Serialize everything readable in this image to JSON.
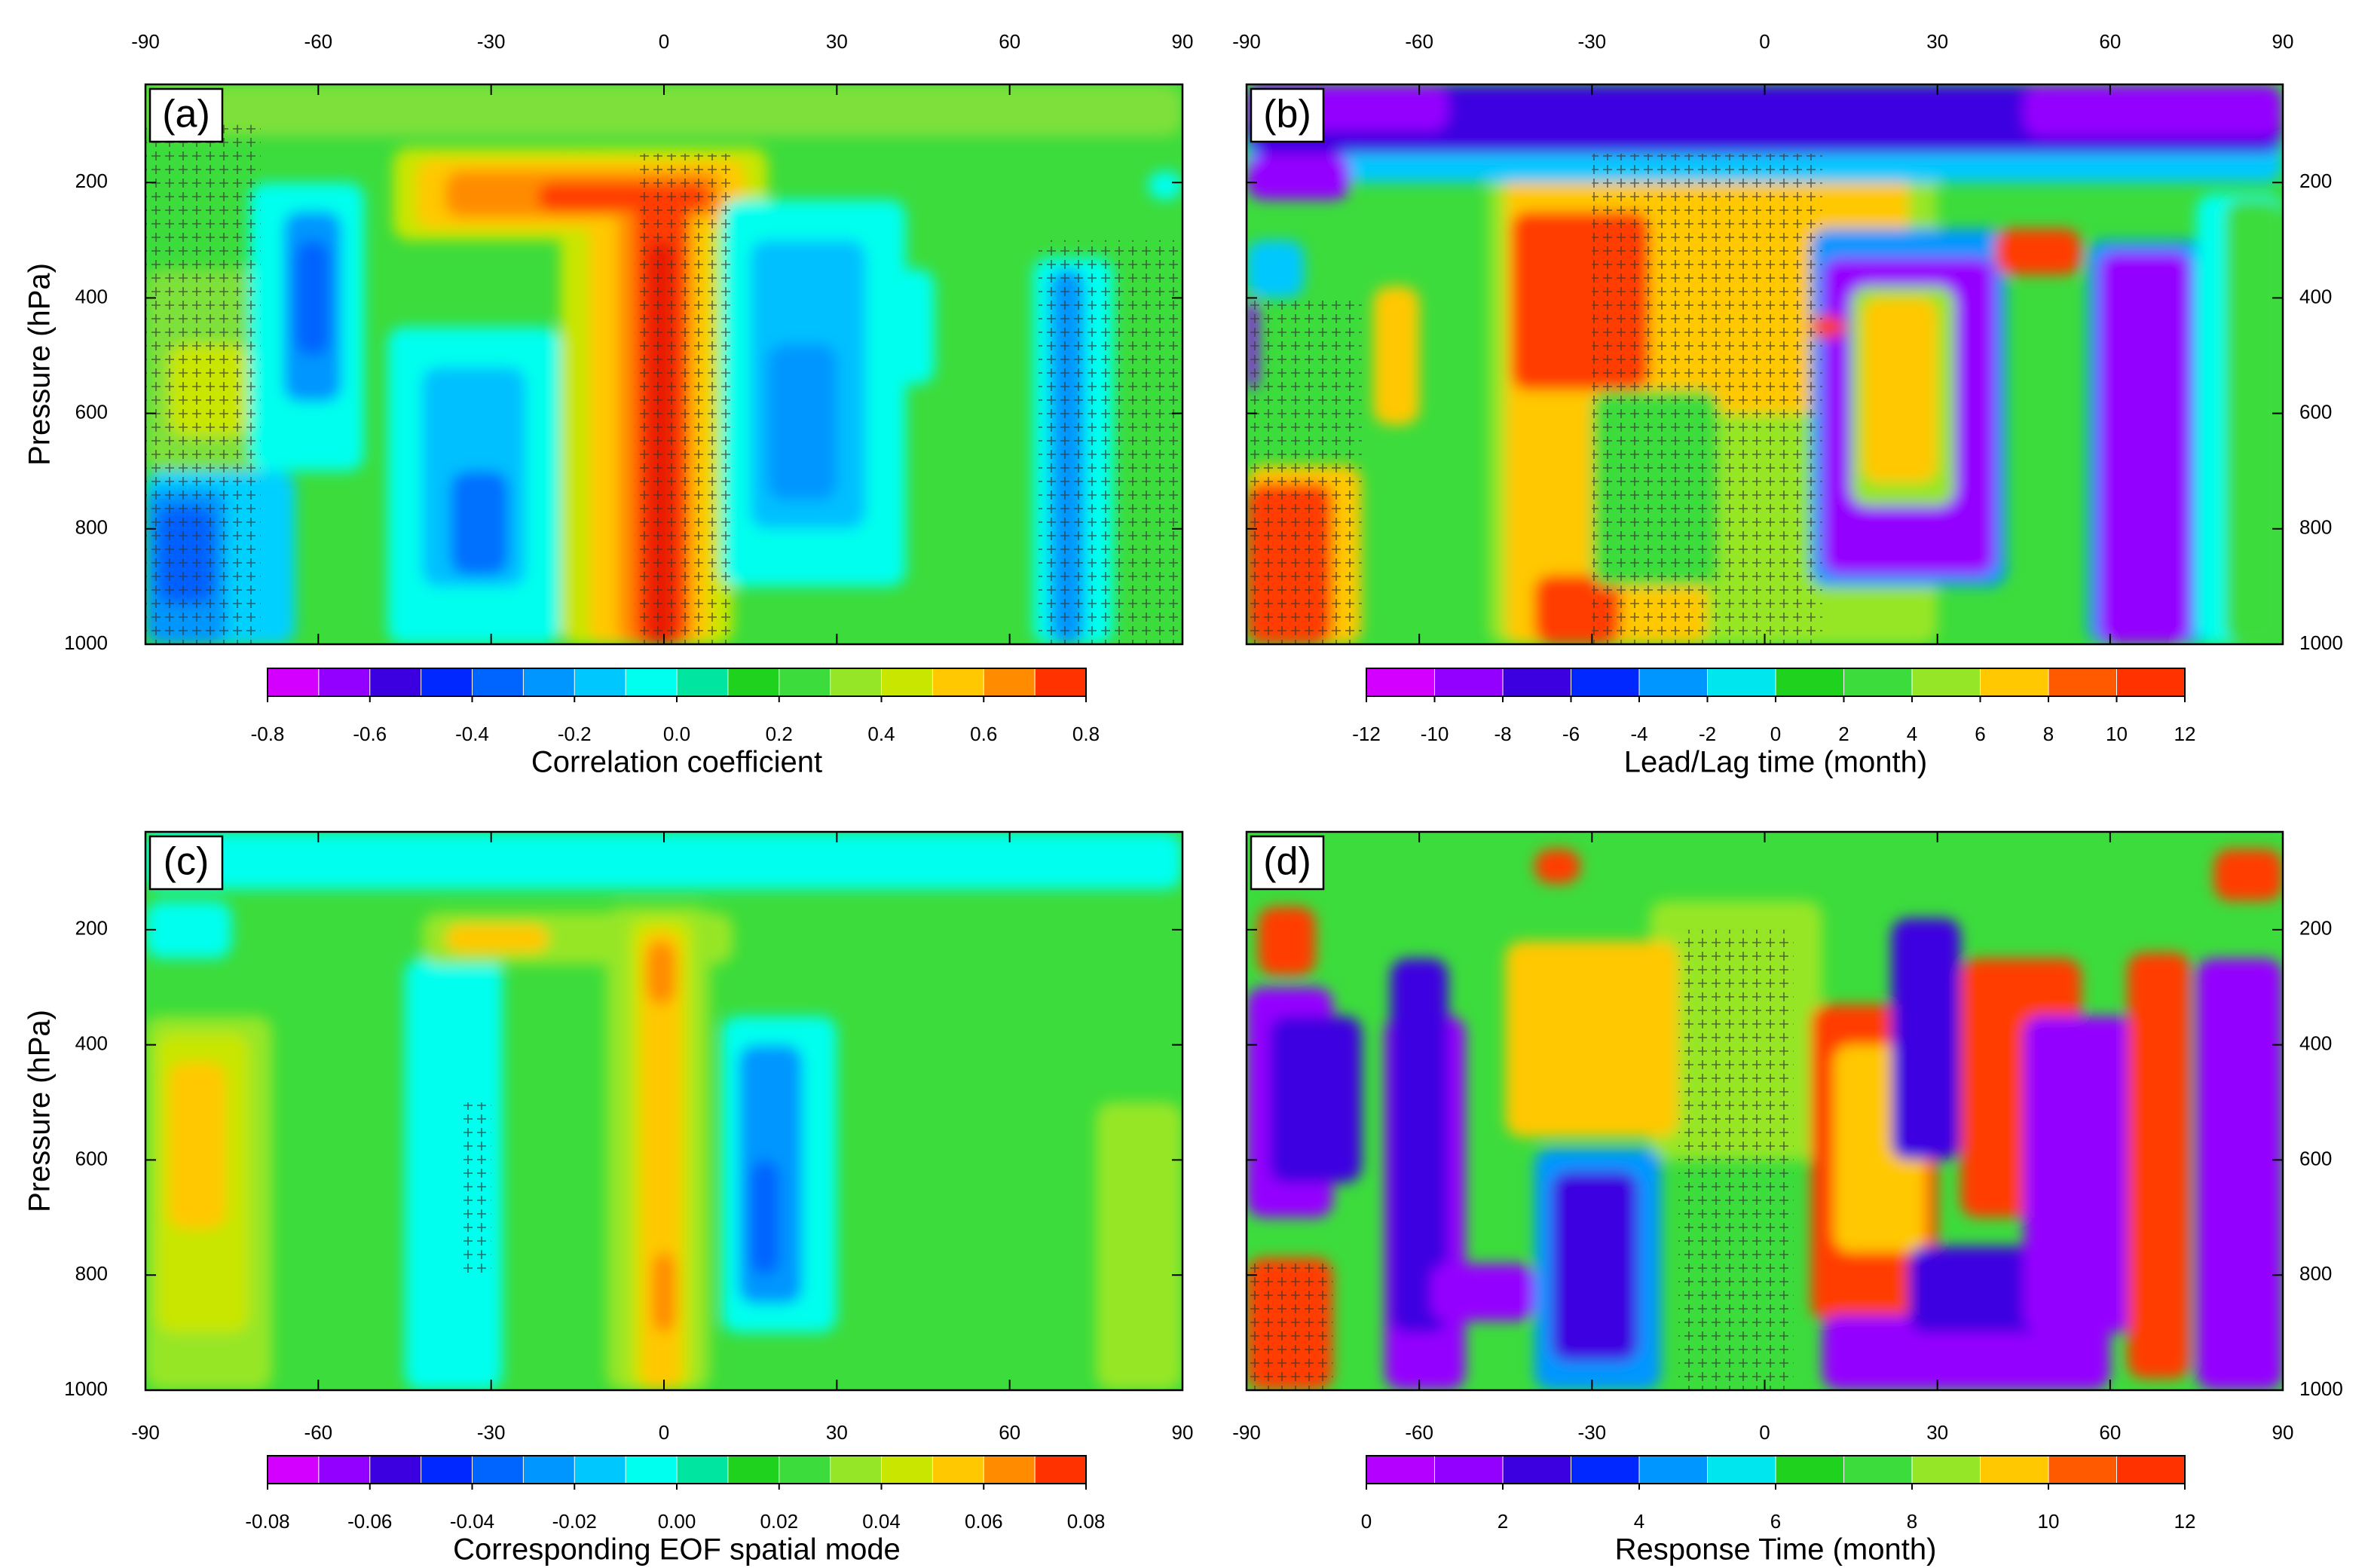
{
  "chart_data": [
    {
      "type": "contour",
      "panel_label": "(a)",
      "xlim": [
        -90,
        90
      ],
      "xticks": [
        -90,
        -60,
        -30,
        0,
        30,
        60,
        90
      ],
      "xtick_side": "top",
      "ylim": [
        1000,
        30
      ],
      "yticks": [
        200,
        400,
        600,
        800,
        1000
      ],
      "ytick_side": "left",
      "ylabel": "Pressure (hPa)",
      "colorbar": {
        "label": "Correlation coefficient",
        "clim": [
          -0.8,
          0.8
        ],
        "ticks": [
          -0.8,
          -0.6,
          -0.4,
          -0.2,
          {
            "value": 0,
            "label": "0.0"
          },
          0.2,
          0.4,
          0.6,
          0.8
        ],
        "colors": [
          "#d300ff",
          "#9400ff",
          "#3c00e0",
          "#0028ff",
          "#0064ff",
          "#0096ff",
          "#00c8ff",
          "#00ffee",
          "#00e6a0",
          "#1ed21e",
          "#3cdc3c",
          "#96e628",
          "#c8e600",
          "#ffc800",
          "#ff8c00",
          "#ff3200"
        ]
      }
    },
    {
      "type": "contour",
      "panel_label": "(b)",
      "xlim": [
        -90,
        90
      ],
      "xticks": [
        -90,
        -60,
        -30,
        0,
        30,
        60,
        90
      ],
      "xtick_side": "top",
      "ylim": [
        1000,
        30
      ],
      "yticks": [
        200,
        400,
        600,
        800,
        1000
      ],
      "ytick_side": "right",
      "colorbar": {
        "label": "Lead/Lag time (month)",
        "clim": [
          -12,
          12
        ],
        "ticks": [
          -12,
          -10,
          -8,
          -6,
          -4,
          -2,
          0,
          2,
          4,
          6,
          8,
          10,
          12
        ],
        "colors": [
          "#d300ff",
          "#9400ff",
          "#3c00e0",
          "#0028ff",
          "#0096ff",
          "#00e6ee",
          "#1ed21e",
          "#3cdc3c",
          "#96e628",
          "#ffc800",
          "#ff5a00",
          "#ff3200"
        ]
      }
    },
    {
      "type": "contour",
      "panel_label": "(c)",
      "xlim": [
        -90,
        90
      ],
      "xticks": [
        -90,
        -60,
        -30,
        0,
        30,
        60,
        90
      ],
      "xtick_side": "bottom",
      "ylim": [
        1000,
        30
      ],
      "yticks": [
        200,
        400,
        600,
        800,
        1000
      ],
      "ytick_side": "left",
      "ylabel": "Pressure (hPa)",
      "colorbar": {
        "label": "Corresponding EOF spatial mode",
        "clim": [
          -0.08,
          0.08
        ],
        "ticks": [
          -0.08,
          -0.06,
          -0.04,
          -0.02,
          {
            "value": 0,
            "label": "0.00"
          },
          0.02,
          0.04,
          0.06,
          0.08
        ],
        "colors": [
          "#d300ff",
          "#9400ff",
          "#3c00e0",
          "#0028ff",
          "#0064ff",
          "#0096ff",
          "#00c8ff",
          "#00ffee",
          "#00e6a0",
          "#1ed21e",
          "#3cdc3c",
          "#96e628",
          "#c8e600",
          "#ffc800",
          "#ff8c00",
          "#ff3200"
        ]
      }
    },
    {
      "type": "contour",
      "panel_label": "(d)",
      "xlim": [
        -90,
        90
      ],
      "xticks": [
        -90,
        -60,
        -30,
        0,
        30,
        60,
        90
      ],
      "xtick_side": "bottom",
      "ylim": [
        1000,
        30
      ],
      "yticks": [
        200,
        400,
        600,
        800,
        1000
      ],
      "ytick_side": "right",
      "colorbar": {
        "label": "Response Time (month)",
        "clim": [
          0,
          12
        ],
        "ticks": [
          0,
          2,
          4,
          6,
          8,
          10,
          12
        ],
        "colors": [
          "#b400ff",
          "#9400ff",
          "#3c00e0",
          "#0028ff",
          "#0096ff",
          "#00e6ee",
          "#1ed21e",
          "#3cdc3c",
          "#96e628",
          "#ffc800",
          "#ff5a00",
          "#ff3200"
        ]
      }
    }
  ]
}
